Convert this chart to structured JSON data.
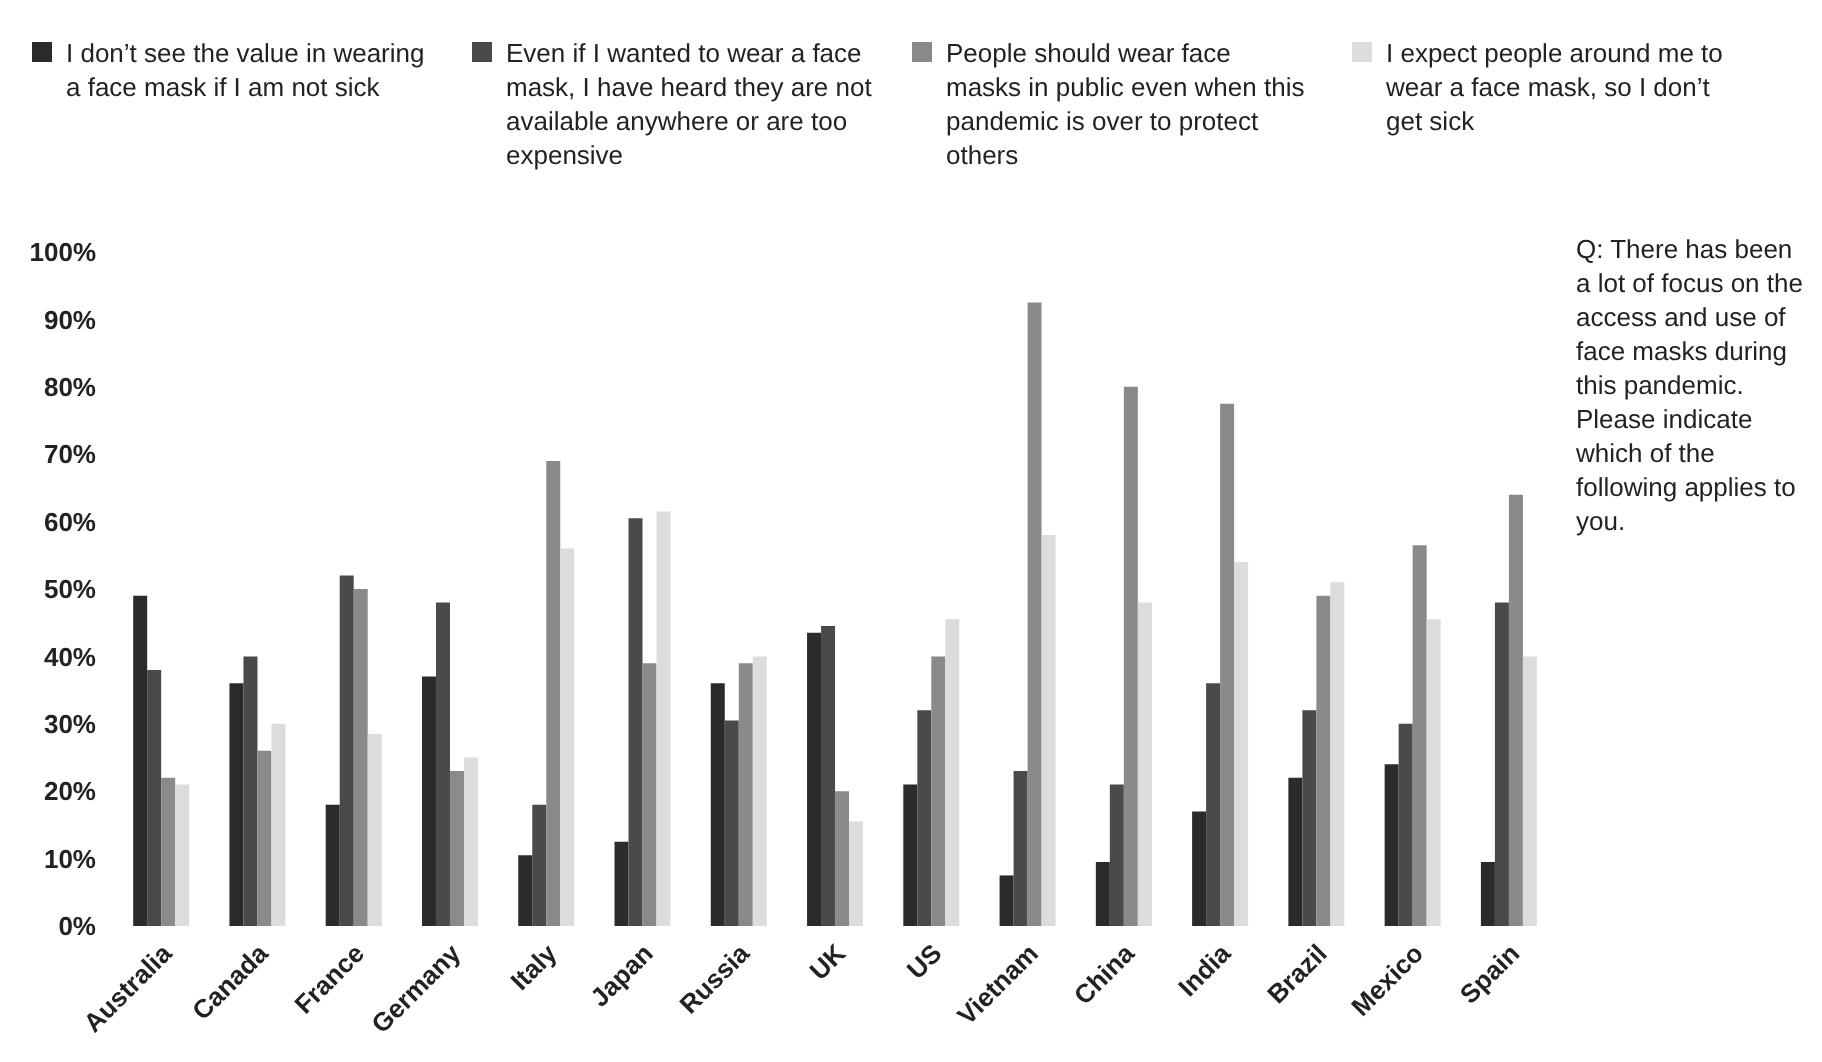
{
  "chart_data": {
    "type": "bar",
    "categories": [
      "Australia",
      "Canada",
      "France",
      "Germany",
      "Italy",
      "Japan",
      "Russia",
      "UK",
      "US",
      "Vietnam",
      "China",
      "India",
      "Brazil",
      "Mexico",
      "Spain"
    ],
    "series": [
      {
        "name": "I don’t see the value in wearing a face mask if I am not sick",
        "color": "#2b2b2b",
        "values": [
          49,
          36,
          18,
          37,
          10.5,
          12.5,
          36,
          43.5,
          21,
          7.5,
          9.5,
          17,
          22,
          24,
          9.5
        ]
      },
      {
        "name": "Even if I wanted to wear a face mask, I have heard they are not available anywhere or are too expensive",
        "color": "#4a4a4a",
        "values": [
          38,
          40,
          52,
          48,
          18,
          60.5,
          30.5,
          44.5,
          32,
          23,
          21,
          36,
          32,
          30,
          48
        ]
      },
      {
        "name": "People should wear face masks in public even when this pandemic is over to protect others",
        "color": "#8a8a8a",
        "values": [
          22,
          26,
          50,
          23,
          69,
          39,
          39,
          20,
          40,
          92.5,
          80,
          77.5,
          49,
          56.5,
          64
        ]
      },
      {
        "name": "I expect people around me to wear a face mask, so I don’t get sick",
        "color": "#dcdcdc",
        "values": [
          21,
          30,
          28.5,
          25,
          56,
          61.5,
          40,
          15.5,
          45.5,
          58,
          48,
          54,
          51,
          45.5,
          40
        ]
      }
    ],
    "ylim": [
      0,
      100
    ],
    "yticks": [
      {
        "value": 0,
        "label": "0%"
      },
      {
        "value": 10,
        "label": "10%"
      },
      {
        "value": 20,
        "label": "20%"
      },
      {
        "value": 30,
        "label": "30%"
      },
      {
        "value": 40,
        "label": "40%"
      },
      {
        "value": 50,
        "label": "50%"
      },
      {
        "value": 60,
        "label": "60%"
      },
      {
        "value": 70,
        "label": "70%"
      },
      {
        "value": 80,
        "label": "80%"
      },
      {
        "value": 90,
        "label": "90%"
      },
      {
        "value": 100,
        "label": "100%"
      }
    ],
    "legend": "top",
    "annotations": [
      "Q: There has been a lot of focus on the access and use of face masks during this pandemic.\nPlease indicate which of the following applies to you."
    ]
  }
}
